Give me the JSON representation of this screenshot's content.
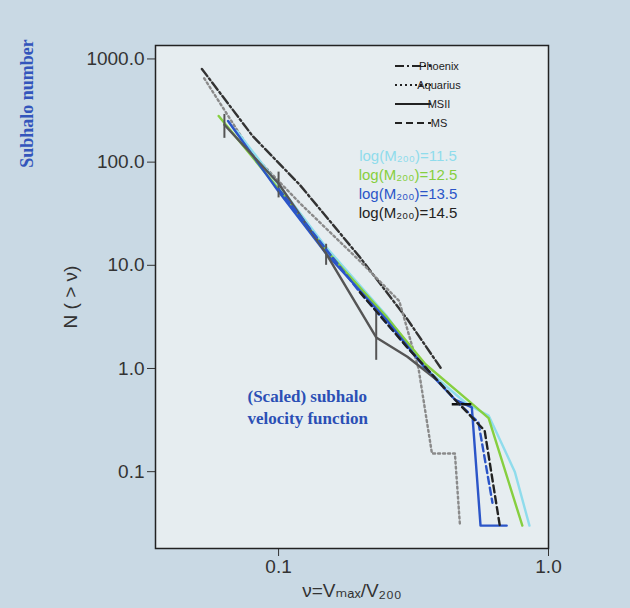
{
  "chart_data": {
    "type": "line",
    "side_label": "Subhalo number",
    "x_label": "ν=Vₘₐₓ/V₂₀₀",
    "y_label": "N ( > ν)",
    "annotation": [
      "(Scaled) subhalo",
      "velocity function"
    ],
    "log": true,
    "xlim": [
      0.035,
      1.0
    ],
    "ylim": [
      0.018,
      1350
    ],
    "xticks": [
      0.1,
      {
        "value": 1.0,
        "label": "1.0"
      }
    ],
    "yticks": [
      0.1,
      {
        "value": 1.0,
        "label": "1.0"
      },
      {
        "value": 10,
        "label": "10.0"
      },
      {
        "value": 100,
        "label": "100.0"
      },
      {
        "value": 1000,
        "label": "1000.0"
      }
    ],
    "legend": "top-right",
    "mass_labels": [
      {
        "label": "log(M₂₀₀)=11.5",
        "color": "#8fdcec"
      },
      {
        "label": "log(M₂₀₀)=12.5",
        "color": "#86cf3f"
      },
      {
        "label": "log(M₂₀₀)=13.5",
        "color": "#2b55c8"
      },
      {
        "label": "log(M₂₀₀)=14.5",
        "color": "#222222"
      }
    ],
    "series": [
      {
        "name": "Phoenix",
        "color": "#333333",
        "line_style": "dashdot",
        "x": [
          0.052,
          0.08,
          0.12,
          0.2,
          0.3,
          0.4
        ],
        "values": [
          800,
          180,
          60,
          12,
          3,
          1.0
        ]
      },
      {
        "name": "Aquarius",
        "color": "#8a8a8a",
        "line_style": "dotted",
        "x": [
          0.053,
          0.08,
          0.12,
          0.2,
          0.28,
          0.33,
          0.37,
          0.45,
          0.47
        ],
        "values": [
          650,
          120,
          40,
          11,
          4.5,
          1.0,
          0.15,
          0.15,
          0.03
        ]
      },
      {
        "name": "MSII",
        "color": "#8fdcec",
        "line_style": "solid",
        "x": [
          0.07,
          0.1,
          0.15,
          0.25,
          0.35,
          0.5,
          0.6,
          0.75,
          0.85
        ],
        "values": [
          200,
          60,
          15,
          3.3,
          1.0,
          0.45,
          0.35,
          0.1,
          0.03
        ]
      },
      {
        "name": "MSII",
        "color": "#86cf3f",
        "line_style": "solid",
        "x": [
          0.06,
          0.1,
          0.15,
          0.25,
          0.35,
          0.5,
          0.6,
          0.8
        ],
        "values": [
          280,
          55,
          14,
          3.2,
          1.1,
          0.5,
          0.33,
          0.03
        ]
      },
      {
        "name": "MSII",
        "color": "#2b55c8",
        "line_style": "solid",
        "x": [
          0.065,
          0.1,
          0.15,
          0.25,
          0.35,
          0.45,
          0.52,
          0.56,
          0.7
        ],
        "values": [
          250,
          52,
          13,
          3,
          1.0,
          0.5,
          0.42,
          0.03,
          0.03
        ]
      },
      {
        "name": "MSII",
        "color": "#555555",
        "line_style": "solid",
        "x": [
          0.063,
          0.1,
          0.15,
          0.23,
          0.3,
          0.38
        ],
        "values": [
          230,
          62,
          13,
          2.0,
          1.3,
          0.8
        ],
        "errors": [
          {
            "x": 0.063,
            "lo": 170,
            "hi": 290
          },
          {
            "x": 0.1,
            "lo": 45,
            "hi": 80
          },
          {
            "x": 0.15,
            "lo": 10,
            "hi": 16
          },
          {
            "x": 0.23,
            "lo": 1.2,
            "hi": 3.5
          }
        ],
        "x_errors": [
          {
            "y": 0.45,
            "lo": 0.44,
            "hi": 0.52
          }
        ]
      },
      {
        "name": "MS",
        "color": "#2b55c8",
        "line_style": "dashed",
        "x": [
          0.1,
          0.2,
          0.3,
          0.45,
          0.55,
          0.62
        ],
        "values": [
          55,
          5.5,
          1.6,
          0.5,
          0.3,
          0.05
        ]
      },
      {
        "name": "MS",
        "color": "#222222",
        "line_style": "dashed",
        "x": [
          0.2,
          0.3,
          0.45,
          0.58,
          0.66
        ],
        "values": [
          5.5,
          1.6,
          0.5,
          0.25,
          0.03
        ]
      }
    ]
  }
}
